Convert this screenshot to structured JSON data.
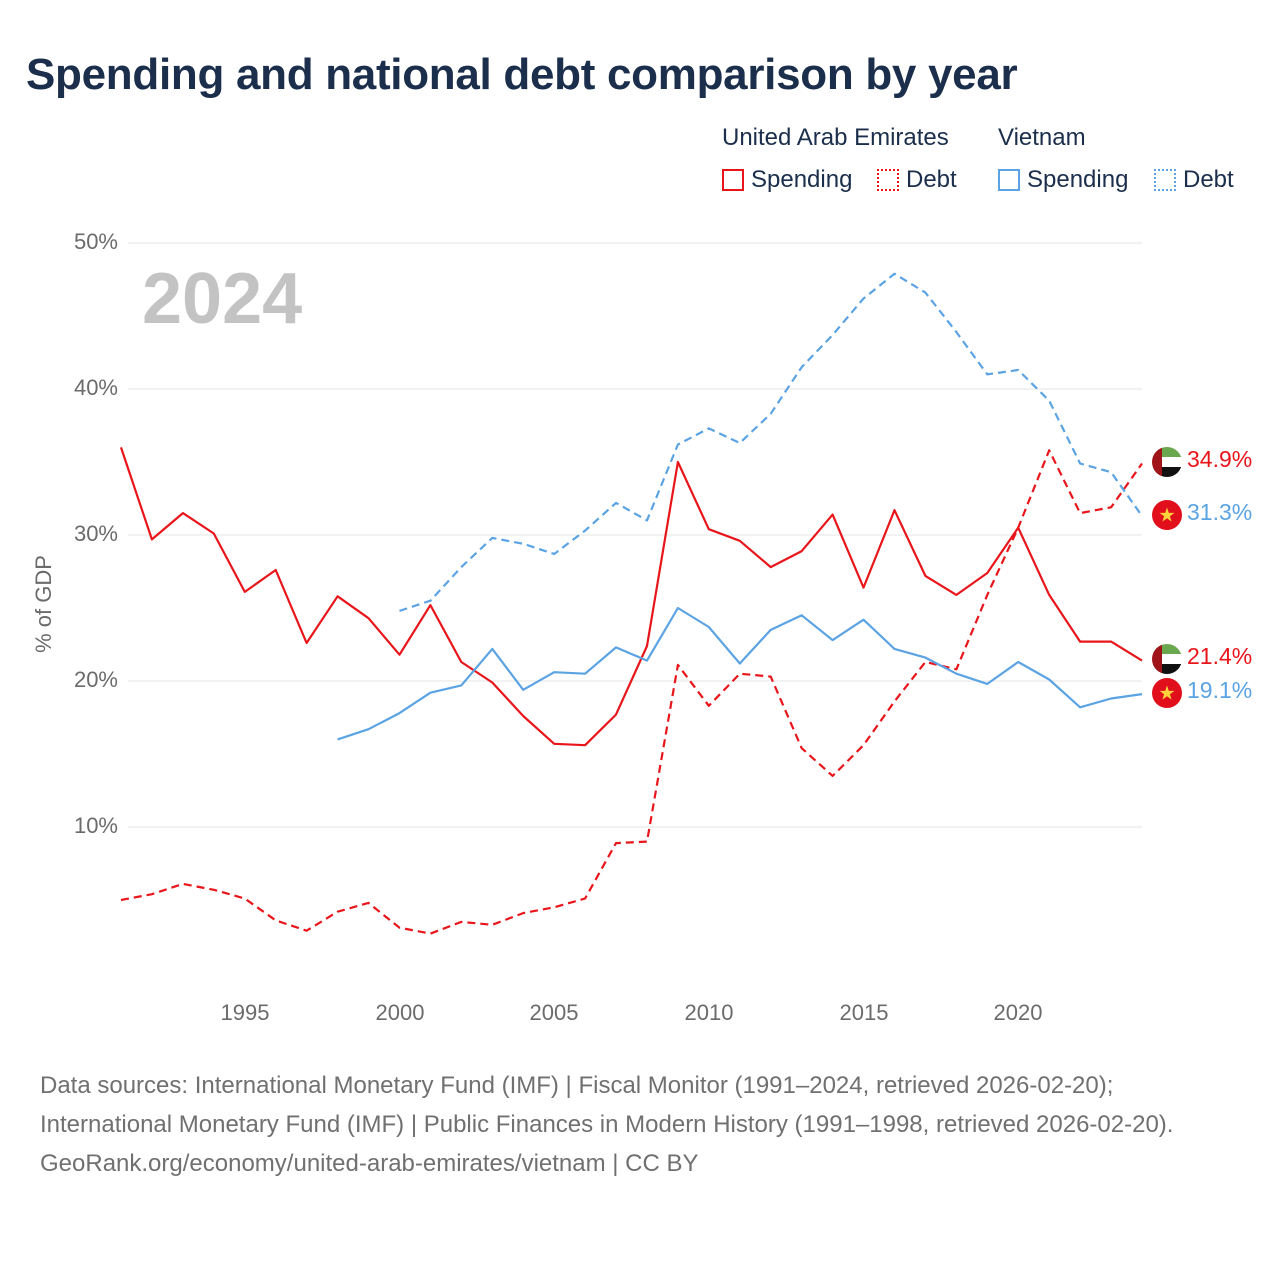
{
  "title": "Spending and national debt comparison by year",
  "legend": {
    "groups": [
      {
        "name": "United Arab Emirates",
        "color": "#e8161b",
        "items": [
          "Spending",
          "Debt"
        ]
      },
      {
        "name": "Vietnam",
        "color": "#5ba3e2",
        "items": [
          "Spending",
          "Debt"
        ]
      }
    ]
  },
  "year_watermark": "2024",
  "end_labels": {
    "uae_debt": "34.9%",
    "vietnam_debt": "31.3%",
    "uae_spending": "21.4%",
    "vietnam_spending": "19.1%"
  },
  "footer": {
    "sources": "Data sources: International Monetary Fund (IMF) | Fiscal Monitor (1991–2024, retrieved 2026-02-20); International Monetary Fund (IMF) | Public Finances in Modern History (1991–1998, retrieved 2026-02-20).",
    "credit": "GeoRank.org/economy/united-arab-emirates/vietnam | CC BY"
  },
  "chart_data": {
    "type": "line",
    "title": "Spending and national debt comparison by year",
    "xlabel": "",
    "ylabel": "% of GDP",
    "xlim": [
      1991,
      2024
    ],
    "ylim": [
      0,
      50
    ],
    "y_ticks": [
      10,
      20,
      30,
      40,
      50
    ],
    "y_tick_labels": [
      "10%",
      "20%",
      "30%",
      "40%",
      "50%"
    ],
    "x_ticks": [
      1995,
      2000,
      2005,
      2010,
      2015,
      2020
    ],
    "x_tick_labels": [
      "1995",
      "2000",
      "2005",
      "2010",
      "2015",
      "2020"
    ],
    "grid": true,
    "series": [
      {
        "id": "uae_spending",
        "name": "United Arab Emirates Spending",
        "color": "#e8161b",
        "dash": "solid",
        "x": [
          1991,
          1992,
          1993,
          1994,
          1995,
          1996,
          1997,
          1998,
          1999,
          2000,
          2001,
          2002,
          2003,
          2004,
          2005,
          2006,
          2007,
          2008,
          2009,
          2010,
          2011,
          2012,
          2013,
          2014,
          2015,
          2016,
          2017,
          2018,
          2019,
          2020,
          2021,
          2022,
          2023,
          2024
        ],
        "values": [
          36.0,
          29.7,
          31.5,
          30.1,
          26.1,
          27.6,
          22.6,
          25.8,
          24.3,
          21.8,
          25.2,
          21.3,
          19.9,
          17.6,
          15.7,
          15.6,
          17.7,
          22.4,
          35.0,
          30.4,
          29.6,
          27.8,
          28.9,
          31.4,
          26.4,
          31.7,
          27.2,
          25.9,
          27.4,
          30.5,
          25.9,
          22.7,
          22.7,
          21.4
        ]
      },
      {
        "id": "uae_debt",
        "name": "United Arab Emirates Debt",
        "color": "#e8161b",
        "dash": "dashed",
        "x": [
          1991,
          1992,
          1993,
          1994,
          1995,
          1996,
          1997,
          1998,
          1999,
          2000,
          2001,
          2002,
          2003,
          2004,
          2005,
          2006,
          2007,
          2008,
          2009,
          2010,
          2011,
          2012,
          2013,
          2014,
          2015,
          2016,
          2017,
          2018,
          2019,
          2020,
          2021,
          2022,
          2023,
          2024
        ],
        "values": [
          5.0,
          5.4,
          6.1,
          5.7,
          5.1,
          3.6,
          2.9,
          4.2,
          4.8,
          3.1,
          2.7,
          3.5,
          3.3,
          4.1,
          4.5,
          5.1,
          8.9,
          9.0,
          21.1,
          18.3,
          20.5,
          20.3,
          15.4,
          13.5,
          15.6,
          18.6,
          21.3,
          20.8,
          25.9,
          30.5,
          35.8,
          31.5,
          31.9,
          34.9
        ]
      },
      {
        "id": "vietnam_spending",
        "name": "Vietnam Spending",
        "color": "#5ba3e2",
        "dash": "solid",
        "x": [
          1998,
          1999,
          2000,
          2001,
          2002,
          2003,
          2004,
          2005,
          2006,
          2007,
          2008,
          2009,
          2010,
          2011,
          2012,
          2013,
          2014,
          2015,
          2016,
          2017,
          2018,
          2019,
          2020,
          2021,
          2022,
          2023,
          2024
        ],
        "values": [
          16.0,
          16.7,
          17.8,
          19.2,
          19.7,
          22.2,
          19.4,
          20.6,
          20.5,
          22.3,
          21.4,
          25.0,
          23.7,
          21.2,
          23.5,
          24.5,
          22.8,
          24.2,
          22.2,
          21.6,
          20.5,
          19.8,
          21.3,
          20.1,
          18.2,
          18.8,
          19.1
        ]
      },
      {
        "id": "vietnam_debt",
        "name": "Vietnam Debt",
        "color": "#5ba3e2",
        "dash": "dashed",
        "x": [
          2000,
          2001,
          2002,
          2003,
          2004,
          2005,
          2006,
          2007,
          2008,
          2009,
          2010,
          2011,
          2012,
          2013,
          2014,
          2015,
          2016,
          2017,
          2018,
          2019,
          2020,
          2021,
          2022,
          2023,
          2024
        ],
        "values": [
          24.8,
          25.5,
          27.8,
          29.8,
          29.4,
          28.7,
          30.3,
          32.2,
          31.0,
          36.2,
          37.3,
          36.3,
          38.3,
          41.5,
          43.7,
          46.2,
          47.9,
          46.6,
          43.9,
          41.0,
          41.3,
          39.2,
          34.9,
          34.3,
          31.3
        ]
      }
    ]
  }
}
